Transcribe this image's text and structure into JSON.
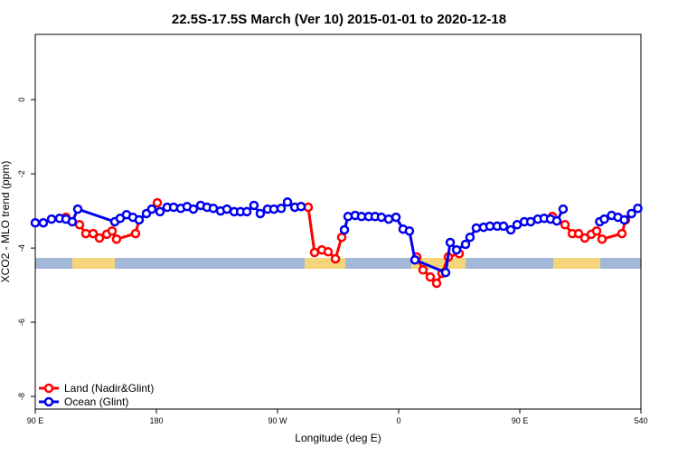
{
  "chart_data": {
    "type": "line",
    "title": "22.5S-17.5S March (Ver 10)   2015-01-01 to 2020-12-18",
    "xlabel": "Longitude (deg E)",
    "ylabel": "XCO2 - MLO trend (ppm)",
    "xlim": [
      90,
      540
    ],
    "ylim": [
      -8.34,
      1.76
    ],
    "xticks": [
      {
        "value": 90,
        "label": "90 E"
      },
      180,
      {
        "value": 270,
        "label": "90 W"
      },
      {
        "value": 360,
        "label": "0"
      },
      {
        "value": 450,
        "label": "90 E"
      },
      540
    ],
    "yticks": [
      0,
      -2,
      -4,
      -6,
      -8
    ],
    "legend": "bottom-left",
    "series": [
      {
        "name": "Land (Nadir&Glint)",
        "color": "#ff0000",
        "x": [
          112.8,
          122.9,
          127.6,
          133,
          137.7,
          143.1,
          147.1,
          150.4,
          164.5,
          167.2,
          176.6,
          180.7,
          null,
          292.8,
          297.5,
          302.9,
          307.6,
          313,
          317.7,
          null,
          373.4,
          378.1,
          383.5,
          388.2,
          392.2,
          396.9,
          405,
          null,
          474.2,
          483.6,
          489,
          493.7,
          498.3,
          503.1,
          507.1,
          511.1,
          525.9,
          528.6
        ],
        "values": [
          -3.17,
          -3.37,
          -3.61,
          -3.61,
          -3.73,
          -3.63,
          -3.54,
          -3.76,
          -3.61,
          -3.24,
          -2.95,
          -2.78,
          null,
          -2.9,
          -4.12,
          -4.05,
          -4.1,
          -4.29,
          -3.71,
          null,
          -4.24,
          -4.59,
          -4.78,
          -4.95,
          -4.68,
          -4.24,
          -4.15,
          null,
          -3.15,
          -3.37,
          -3.61,
          -3.61,
          -3.73,
          -3.63,
          -3.54,
          -3.76,
          -3.61,
          -3.24
        ]
      },
      {
        "name": "Ocean (Glint)",
        "color": "#0000ee",
        "x": [
          90,
          96,
          102.1,
          108.1,
          112.8,
          117.5,
          121.6,
          149.1,
          153.1,
          157.8,
          162.5,
          167.2,
          172.6,
          176.6,
          182.7,
          188,
          192.8,
          198.1,
          202.8,
          207.5,
          212.9,
          217.6,
          222.3,
          227.7,
          232.4,
          237.8,
          242.5,
          247.2,
          252.5,
          257.2,
          262.6,
          267.3,
          272.7,
          277.4,
          282.8,
          287.5,
          null,
          319.7,
          322.4,
          327.7,
          332.4,
          337.8,
          342.5,
          347.2,
          352.6,
          358,
          363.3,
          368,
          372.1,
          394.9,
          398.3,
          403,
          409.7,
          413,
          417.7,
          423.1,
          427.8,
          433.2,
          437.9,
          443.3,
          448,
          453.4,
          458.1,
          463.4,
          468.1,
          472.8,
          477.5,
          482.2,
          null,
          509.4,
          512.8,
          518.2,
          522.9,
          527.6,
          533,
          537.7
        ],
        "values": [
          -3.32,
          -3.32,
          -3.22,
          -3.2,
          -3.22,
          -3.29,
          -2.95,
          -3.29,
          -3.2,
          -3.1,
          -3.17,
          -3.24,
          -3.07,
          -2.95,
          -3.02,
          -2.9,
          -2.9,
          -2.93,
          -2.88,
          -2.95,
          -2.85,
          -2.9,
          -2.93,
          -3.0,
          -2.95,
          -3.02,
          -3.02,
          -3.02,
          -2.85,
          -3.07,
          -2.95,
          -2.95,
          -2.93,
          -2.76,
          -2.9,
          -2.88,
          null,
          -3.51,
          -3.15,
          -3.12,
          -3.15,
          -3.15,
          -3.15,
          -3.17,
          -3.22,
          -3.17,
          -3.49,
          -3.54,
          -4.32,
          -4.66,
          -3.85,
          -4.05,
          -3.9,
          -3.71,
          -3.46,
          -3.44,
          -3.41,
          -3.41,
          -3.41,
          -3.51,
          -3.37,
          -3.29,
          -3.29,
          -3.22,
          -3.2,
          -3.22,
          -3.27,
          -2.95,
          null,
          -3.29,
          -3.22,
          -3.12,
          -3.17,
          -3.24,
          -3.07,
          -2.93
        ]
      }
    ]
  }
}
